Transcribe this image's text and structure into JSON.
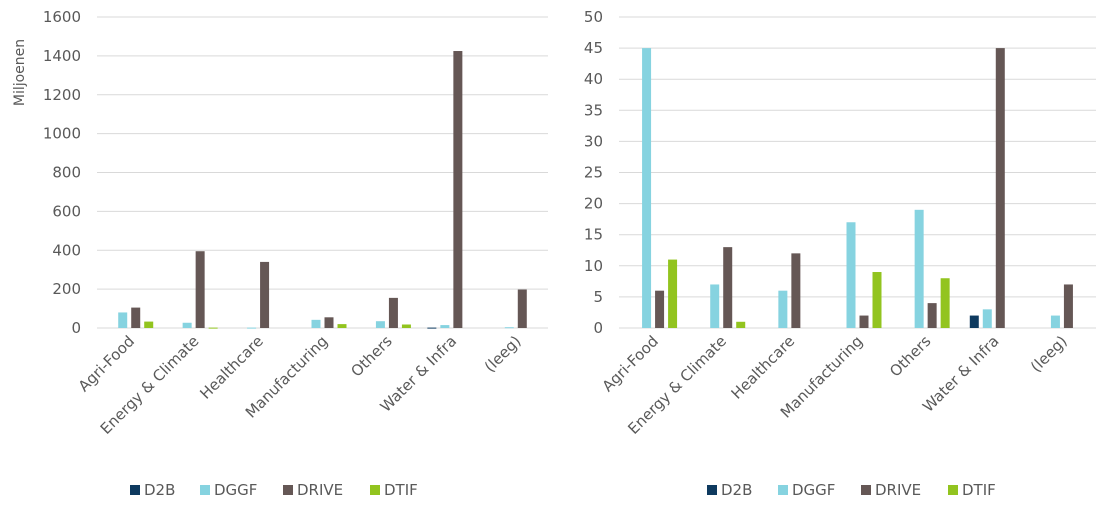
{
  "chart_data": [
    {
      "type": "bar",
      "ylabel": "Miljoenen",
      "ylim": [
        0,
        1600
      ],
      "yticks": [
        "0",
        "200",
        "400",
        "600",
        "800",
        "1000",
        "1200",
        "1400",
        "1600"
      ],
      "categories": [
        "Agri-Food",
        "Energy & Climate",
        "Healthcare",
        "Manufacturing",
        "Others",
        "Water & Infra",
        "(leeg)"
      ],
      "series": [
        {
          "name": "D2B",
          "color": "#0e3a5f",
          "values": [
            0,
            0,
            0,
            0,
            0,
            2,
            0
          ]
        },
        {
          "name": "DGGF",
          "color": "#86d3e0",
          "values": [
            80,
            27,
            2,
            42,
            35,
            15,
            4
          ]
        },
        {
          "name": "DRIVE",
          "color": "#655755",
          "values": [
            105,
            395,
            340,
            55,
            155,
            1425,
            198
          ]
        },
        {
          "name": "DTIF",
          "color": "#92c41f",
          "values": [
            33,
            2,
            0,
            20,
            18,
            0,
            0
          ]
        }
      ],
      "grid": true,
      "legend": "bottom"
    },
    {
      "type": "bar",
      "ylabel": "",
      "ylim": [
        0,
        50
      ],
      "yticks": [
        "0",
        "5",
        "10",
        "15",
        "20",
        "25",
        "30",
        "35",
        "40",
        "45",
        "50"
      ],
      "categories": [
        "Agri-Food",
        "Energy & Climate",
        "Healthcare",
        "Manufacturing",
        "Others",
        "Water & Infra",
        "(leeg)"
      ],
      "series": [
        {
          "name": "D2B",
          "color": "#0e3a5f",
          "values": [
            0,
            0,
            0,
            0,
            0,
            2,
            0
          ]
        },
        {
          "name": "DGGF",
          "color": "#86d3e0",
          "values": [
            45,
            7,
            6,
            17,
            19,
            3,
            2
          ]
        },
        {
          "name": "DRIVE",
          "color": "#655755",
          "values": [
            6,
            13,
            12,
            2,
            4,
            45,
            7
          ]
        },
        {
          "name": "DTIF",
          "color": "#92c41f",
          "values": [
            11,
            1,
            0,
            9,
            8,
            0,
            0
          ]
        }
      ],
      "grid": true,
      "legend": "bottom"
    }
  ]
}
